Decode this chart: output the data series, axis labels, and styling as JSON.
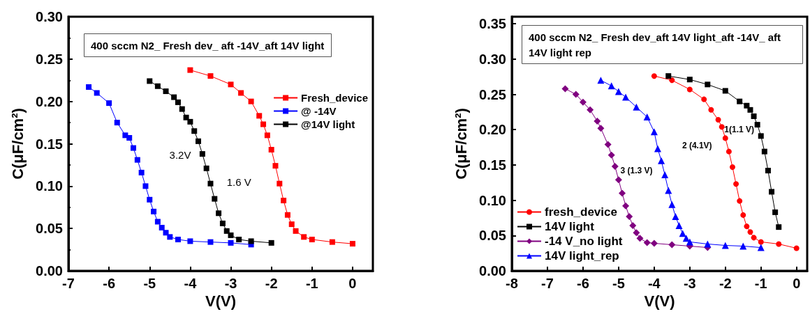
{
  "chart_data": [
    {
      "type": "line",
      "title": "400 sccm N2_ Fresh dev_ aft -14V_aft 14V light",
      "xlabel": "V(V)",
      "ylabel": "C(μF/cm²)",
      "xlim": [
        -7,
        0.5
      ],
      "xticks": [
        -7,
        -6,
        -5,
        -4,
        -3,
        -2,
        -1,
        0
      ],
      "ylim": [
        0,
        0.3
      ],
      "yticks": [
        {
          "value": 0,
          "label": "0.00"
        },
        {
          "value": 0.05,
          "label": "0.05"
        },
        {
          "value": 0.1,
          "label": "0.10"
        },
        {
          "value": 0.15,
          "label": "0.15"
        },
        {
          "value": 0.2,
          "label": "0.20"
        },
        {
          "value": 0.25,
          "label": "0.25"
        },
        {
          "value": 0.3,
          "label": "0.30"
        }
      ],
      "grid": false,
      "legend": "right",
      "marker": "square",
      "annotations": [
        "3.2V",
        "1.6 V"
      ],
      "series": [
        {
          "name": "Fresh_device",
          "color": "#ff0000",
          "x": [
            -4,
            -3.5,
            -3,
            -2.75,
            -2.5,
            -2.3,
            -2.2,
            -2.1,
            -2,
            -1.9,
            -1.8,
            -1.7,
            -1.6,
            -1.5,
            -1.4,
            -1.2,
            -1,
            -0.5,
            0
          ],
          "values": [
            0.237,
            0.23,
            0.22,
            0.21,
            0.2,
            0.183,
            0.173,
            0.16,
            0.143,
            0.124,
            0.103,
            0.083,
            0.066,
            0.055,
            0.047,
            0.04,
            0.037,
            0.034,
            0.032
          ]
        },
        {
          "name": "@ -14V",
          "color": "#0000ff",
          "x": [
            -6.5,
            -6.3,
            -6,
            -5.8,
            -5.6,
            -5.5,
            -5.4,
            -5.3,
            -5.2,
            -5.1,
            -5,
            -4.9,
            -4.8,
            -4.7,
            -4.6,
            -4.5,
            -4.3,
            -4,
            -3.5,
            -3,
            -2.5
          ],
          "values": [
            0.217,
            0.21,
            0.198,
            0.175,
            0.16,
            0.157,
            0.145,
            0.131,
            0.116,
            0.1,
            0.084,
            0.07,
            0.058,
            0.051,
            0.045,
            0.04,
            0.037,
            0.035,
            0.034,
            0.033,
            0.031
          ]
        },
        {
          "name": "@14V light",
          "color": "#000000",
          "x": [
            -5,
            -4.8,
            -4.6,
            -4.4,
            -4.3,
            -4.2,
            -4.1,
            -4,
            -3.9,
            -3.8,
            -3.7,
            -3.6,
            -3.5,
            -3.4,
            -3.3,
            -3.2,
            -3.1,
            -3,
            -2.8,
            -2.5,
            -2
          ],
          "values": [
            0.224,
            0.218,
            0.212,
            0.205,
            0.199,
            0.191,
            0.181,
            0.176,
            0.165,
            0.153,
            0.138,
            0.121,
            0.103,
            0.085,
            0.068,
            0.056,
            0.047,
            0.042,
            0.037,
            0.035,
            0.033
          ]
        }
      ]
    },
    {
      "type": "line",
      "title": "400 sccm N2_ Fresh dev_aft 14V light_aft -14V_ aft 14V light rep",
      "xlabel": "V(V)",
      "ylabel": "C(μF/cm²)",
      "xlim": [
        -8,
        0.3
      ],
      "xticks": [
        -8,
        -7,
        -6,
        -5,
        -4,
        -3,
        -2,
        -1,
        0
      ],
      "ylim": [
        0,
        0.36
      ],
      "yticks": [
        {
          "value": 0,
          "label": "0.00"
        },
        {
          "value": 0.05,
          "label": "0.05"
        },
        {
          "value": 0.1,
          "label": "0.10"
        },
        {
          "value": 0.15,
          "label": "0.15"
        },
        {
          "value": 0.2,
          "label": "0.20"
        },
        {
          "value": 0.25,
          "label": "0.25"
        },
        {
          "value": 0.3,
          "label": "0.30"
        },
        {
          "value": 0.35,
          "label": "0.35"
        }
      ],
      "grid": false,
      "legend": "bottom left",
      "annotations": [
        "1(1.1 V)",
        "2 (4.1V)",
        "3 (1.3 V)"
      ],
      "series": [
        {
          "name": "fresh_device",
          "color": "#ff0000",
          "marker": "circle",
          "x": [
            -4,
            -3.5,
            -3,
            -2.6,
            -2.4,
            -2.2,
            -2.1,
            -2,
            -1.9,
            -1.8,
            -1.7,
            -1.6,
            -1.5,
            -1.4,
            -1.3,
            -1.2,
            -1,
            -0.5,
            0
          ],
          "values": [
            0.276,
            0.27,
            0.257,
            0.243,
            0.228,
            0.214,
            0.204,
            0.188,
            0.169,
            0.147,
            0.123,
            0.099,
            0.079,
            0.063,
            0.055,
            0.047,
            0.041,
            0.038,
            0.032
          ]
        },
        {
          "name": "14V light",
          "color": "#000000",
          "marker": "square",
          "x": [
            -3.6,
            -3,
            -2.5,
            -2,
            -1.6,
            -1.4,
            -1.3,
            -1.2,
            -1.1,
            -1,
            -0.9,
            -0.8,
            -0.7,
            -0.6,
            -0.5
          ],
          "values": [
            0.276,
            0.271,
            0.264,
            0.255,
            0.24,
            0.234,
            0.228,
            0.219,
            0.207,
            0.191,
            0.169,
            0.142,
            0.112,
            0.083,
            0.062
          ]
        },
        {
          "name": "-14 V_no light",
          "color": "#800080",
          "marker": "diamond",
          "x": [
            -6.5,
            -6.2,
            -6,
            -5.8,
            -5.6,
            -5.5,
            -5.3,
            -5.2,
            -5.1,
            -5,
            -4.9,
            -4.8,
            -4.7,
            -4.6,
            -4.5,
            -4.4,
            -4.2,
            -4,
            -3.5,
            -3,
            -2.5
          ],
          "values": [
            0.258,
            0.25,
            0.239,
            0.228,
            0.212,
            0.202,
            0.179,
            0.164,
            0.148,
            0.129,
            0.11,
            0.092,
            0.077,
            0.064,
            0.054,
            0.046,
            0.04,
            0.039,
            0.037,
            0.035,
            0.033
          ]
        },
        {
          "name": "14V light_rep",
          "color": "#0000ff",
          "marker": "triangle",
          "x": [
            -5.5,
            -5.2,
            -5,
            -4.8,
            -4.5,
            -4.2,
            -4,
            -3.9,
            -3.8,
            -3.7,
            -3.6,
            -3.5,
            -3.4,
            -3.3,
            -3.2,
            -3.1,
            -3,
            -2.5,
            -2,
            -1.5,
            -1
          ],
          "values": [
            0.27,
            0.262,
            0.254,
            0.246,
            0.232,
            0.218,
            0.197,
            0.173,
            0.156,
            0.136,
            0.114,
            0.094,
            0.077,
            0.064,
            0.053,
            0.046,
            0.041,
            0.038,
            0.036,
            0.035,
            0.033
          ]
        }
      ]
    }
  ]
}
